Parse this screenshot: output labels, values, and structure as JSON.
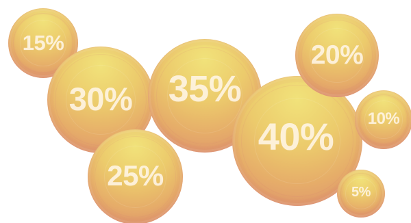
{
  "bubbles": {
    "b15": {
      "label": "15%"
    },
    "b30": {
      "label": "30%"
    },
    "b35": {
      "label": "35%"
    },
    "b25": {
      "label": "25%"
    },
    "b40": {
      "label": "40%"
    },
    "b20": {
      "label": "20%"
    },
    "b10": {
      "label": "10%"
    },
    "b5": {
      "label": "5%"
    }
  }
}
